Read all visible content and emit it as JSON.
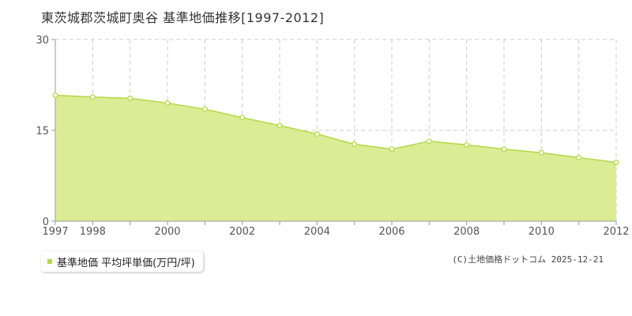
{
  "chart_data": {
    "type": "area",
    "title": "東茨城郡茨城町奥谷 基準地価推移[1997-2012]",
    "x": [
      1997,
      1998,
      1999,
      2000,
      2001,
      2002,
      2003,
      2004,
      2005,
      2006,
      2007,
      2008,
      2009,
      2010,
      2011,
      2012
    ],
    "x_tick_labels": [
      "1997",
      "1998",
      "2000",
      "2002",
      "2004",
      "2006",
      "2008",
      "2010",
      "2012"
    ],
    "series": [
      {
        "name": "基準地価 平均坪単価(万円/坪)",
        "values": [
          20.8,
          20.5,
          20.3,
          19.5,
          18.5,
          17.1,
          15.8,
          14.4,
          12.7,
          11.9,
          13.2,
          12.6,
          11.9,
          11.3,
          10.5,
          9.7
        ]
      }
    ],
    "y_ticks": [
      0,
      15,
      30
    ],
    "ylim": [
      0,
      30
    ],
    "xlim": [
      1997,
      2012
    ],
    "xlabel": "",
    "ylabel": "",
    "grid": true,
    "legend_position": "bottom-left",
    "fill_color": "#dcec94",
    "line_color": "#b5d84a",
    "point_color": "#ffffff"
  },
  "copyright": "(C)土地価格ドットコム 2025-12-21"
}
